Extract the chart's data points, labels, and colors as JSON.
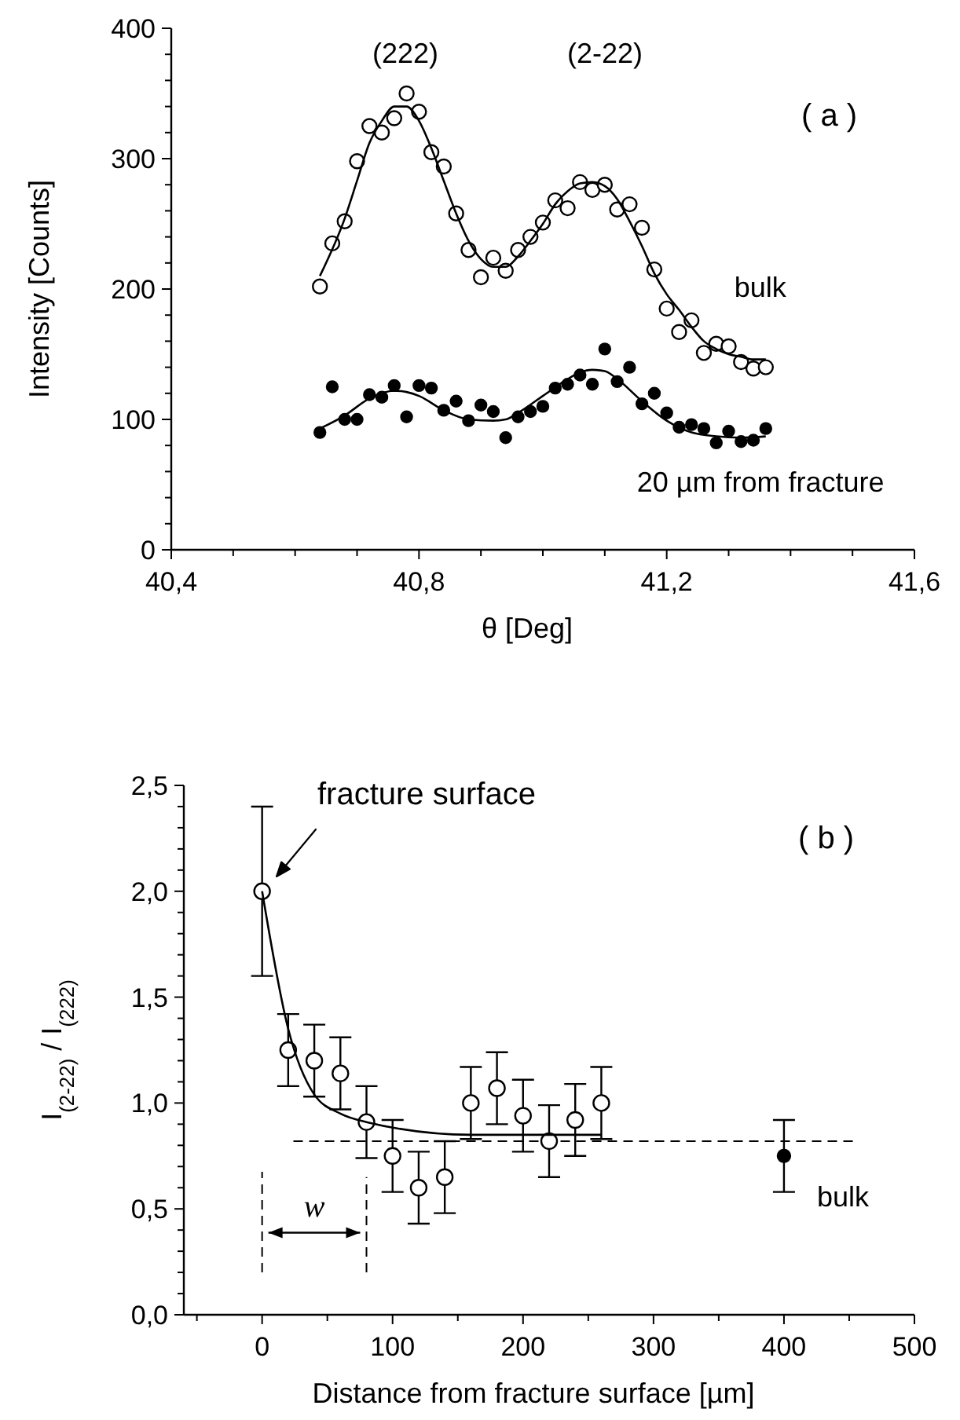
{
  "chart_data": [
    {
      "type": "scatter",
      "xlabel": "θ  [Deg]",
      "ylabel": "Intensity [Counts]",
      "xlim": [
        40.4,
        41.6
      ],
      "ylim": [
        0,
        400
      ],
      "xticks": [
        {
          "value": 40.4,
          "label": "40,4"
        },
        {
          "value": 40.5,
          "label": null
        },
        {
          "value": 40.6,
          "label": null
        },
        {
          "value": 40.7,
          "label": null
        },
        {
          "value": 40.8,
          "label": "40,8"
        },
        {
          "value": 40.9,
          "label": null
        },
        {
          "value": 41.0,
          "label": null
        },
        {
          "value": 41.1,
          "label": null
        },
        {
          "value": 41.2,
          "label": "41,2"
        },
        {
          "value": 41.3,
          "label": null
        },
        {
          "value": 41.4,
          "label": null
        },
        {
          "value": 41.5,
          "label": null
        },
        {
          "value": 41.6,
          "label": "41,6"
        }
      ],
      "yticks": [
        0,
        {
          "value": 20,
          "label": null
        },
        {
          "value": 40,
          "label": null
        },
        {
          "value": 60,
          "label": null
        },
        {
          "value": 80,
          "label": null
        },
        100,
        {
          "value": 120,
          "label": null
        },
        {
          "value": 140,
          "label": null
        },
        {
          "value": 160,
          "label": null
        },
        {
          "value": 180,
          "label": null
        },
        200,
        {
          "value": 220,
          "label": null
        },
        {
          "value": 240,
          "label": null
        },
        {
          "value": 260,
          "label": null
        },
        {
          "value": 280,
          "label": null
        },
        300,
        {
          "value": 320,
          "label": null
        },
        {
          "value": 340,
          "label": null
        },
        {
          "value": 360,
          "label": null
        },
        {
          "value": 380,
          "label": null
        },
        400
      ],
      "marker": "circle",
      "x": [
        40.64,
        40.66,
        40.68,
        40.7,
        40.72,
        40.74,
        40.76,
        40.78,
        40.8,
        40.82,
        40.84,
        40.86,
        40.88,
        40.9,
        40.92,
        40.94,
        40.96,
        40.98,
        41.0,
        41.02,
        41.04,
        41.06,
        41.08,
        41.1,
        41.12,
        41.14,
        41.16,
        41.18,
        41.2,
        41.22,
        41.24,
        41.26,
        41.28,
        41.3,
        41.32,
        41.34,
        41.36
      ],
      "series": [
        {
          "name": "bulk",
          "color": "#ffffff",
          "values": [
            202,
            235,
            252,
            298,
            325,
            320,
            331,
            350,
            336,
            305,
            294,
            258,
            230,
            209,
            224,
            214,
            230,
            240,
            251,
            268,
            262,
            282,
            276,
            280,
            261,
            265,
            247,
            215,
            185,
            167,
            176,
            151,
            158,
            156,
            144,
            139,
            140
          ]
        },
        {
          "type": "line",
          "marker": "none",
          "color": "#000000",
          "x": [
            40.64,
            40.68,
            40.7,
            40.72,
            40.74,
            40.76,
            40.78,
            40.8,
            40.82,
            40.84,
            40.86,
            40.88,
            40.9,
            40.92,
            40.94,
            40.96,
            40.98,
            41.0,
            41.02,
            41.04,
            41.06,
            41.08,
            41.1,
            41.12,
            41.14,
            41.16,
            41.18,
            41.2,
            41.22,
            41.24,
            41.26,
            41.28,
            41.3,
            41.32,
            41.34,
            41.36
          ],
          "values": [
            210,
            254,
            283,
            312,
            329,
            340,
            340,
            329,
            308,
            283,
            258,
            237,
            223,
            217,
            217,
            225,
            237,
            250,
            265,
            275,
            281,
            282,
            279,
            269,
            252,
            233,
            212,
            196,
            184,
            171,
            160,
            154,
            150,
            148,
            146,
            146
          ]
        },
        {
          "name": "20 µm from fracture",
          "color": "#000000",
          "values": [
            90,
            125,
            100,
            100,
            119,
            117,
            126,
            102,
            126,
            124,
            107,
            114,
            99,
            111,
            106,
            86,
            102,
            106,
            110,
            124,
            127,
            134,
            127,
            154,
            129,
            140,
            112,
            120,
            105,
            94,
            96,
            93,
            82,
            91,
            83,
            84,
            93
          ]
        },
        {
          "type": "line",
          "marker": "none",
          "color": "#000000",
          "x": [
            40.64,
            40.68,
            40.72,
            40.76,
            40.78,
            40.8,
            40.84,
            40.88,
            40.92,
            40.94,
            40.96,
            41.0,
            41.04,
            41.06,
            41.08,
            41.1,
            41.12,
            41.16,
            41.2,
            41.24,
            41.28,
            41.32,
            41.36
          ],
          "values": [
            93,
            103,
            116,
            122,
            121,
            118,
            107,
            100,
            99,
            100,
            105,
            118,
            131,
            136,
            138,
            137,
            131,
            114,
            99,
            90,
            87,
            86,
            87
          ]
        }
      ],
      "annotations": [
        "(222)",
        "(2-22)",
        "( a )"
      ]
    },
    {
      "type": "scatter",
      "xlabel": "Distance from fracture surface  [µm]",
      "ylabel": "I$_{(2-22)}$ / I$_{(222)}$",
      "xlim": [
        -60,
        500
      ],
      "ylim": [
        0,
        2.5
      ],
      "xticks": [
        {
          "value": -50,
          "label": null
        },
        0,
        {
          "value": 50,
          "label": null
        },
        100,
        {
          "value": 150,
          "label": null
        },
        200,
        {
          "value": 250,
          "label": null
        },
        300,
        {
          "value": 350,
          "label": null
        },
        400,
        {
          "value": 450,
          "label": null
        },
        500
      ],
      "yticks": [
        {
          "value": 0,
          "label": "0,0"
        },
        {
          "value": 0.1,
          "label": null
        },
        {
          "value": 0.2,
          "label": null
        },
        {
          "value": 0.3,
          "label": null
        },
        {
          "value": 0.4,
          "label": null
        },
        {
          "value": 0.5,
          "label": "0,5"
        },
        {
          "value": 0.6,
          "label": null
        },
        {
          "value": 0.7,
          "label": null
        },
        {
          "value": 0.8,
          "label": null
        },
        {
          "value": 0.9,
          "label": null
        },
        {
          "value": 1.0,
          "label": "1,0"
        },
        {
          "value": 1.1,
          "label": null
        },
        {
          "value": 1.2,
          "label": null
        },
        {
          "value": 1.3,
          "label": null
        },
        {
          "value": 1.4,
          "label": null
        },
        {
          "value": 1.5,
          "label": "1,5"
        },
        {
          "value": 1.6,
          "label": null
        },
        {
          "value": 1.7,
          "label": null
        },
        {
          "value": 1.8,
          "label": null
        },
        {
          "value": 1.9,
          "label": null
        },
        {
          "value": 2.0,
          "label": "2,0"
        },
        {
          "value": 2.1,
          "label": null
        },
        {
          "value": 2.2,
          "label": null
        },
        {
          "value": 2.3,
          "label": null
        },
        {
          "value": 2.4,
          "label": null
        },
        {
          "value": 2.5,
          "label": "2,5"
        }
      ],
      "marker": "circle",
      "series": [
        {
          "color": "#ffffff",
          "x": [
            0,
            20,
            40,
            60,
            80,
            100,
            120,
            140,
            160,
            180,
            200,
            220,
            240,
            260
          ],
          "values": [
            2.0,
            1.25,
            1.2,
            1.14,
            0.91,
            0.75,
            0.6,
            0.65,
            1.0,
            1.07,
            0.94,
            0.82,
            0.92,
            1.0
          ],
          "errors": [
            0.4,
            0.17,
            0.17,
            0.17,
            0.17,
            0.17,
            0.17,
            0.17,
            0.17,
            0.17,
            0.17,
            0.17,
            0.17,
            0.17
          ]
        },
        {
          "type": "line",
          "marker": "none",
          "color": "#000000",
          "x": [
            0,
            20,
            40,
            60,
            80,
            160,
            260
          ],
          "values": [
            2.0,
            1.35,
            1.04,
            0.95,
            0.91,
            0.85,
            0.85
          ]
        },
        {
          "name": "bulk",
          "color": "#000000",
          "x": [
            400
          ],
          "values": [
            0.75
          ],
          "errors": [
            0.17
          ]
        }
      ],
      "ref_lines": [
        {
          "axis": "y",
          "value": 0.82,
          "line_style": "dashed"
        },
        {
          "axis": "x",
          "value": 0,
          "line_style": "dashed"
        },
        {
          "axis": "x",
          "value": 80,
          "line_style": "dashed"
        }
      ],
      "annotations": [
        "fracture surface",
        "( b )",
        "w"
      ]
    }
  ]
}
